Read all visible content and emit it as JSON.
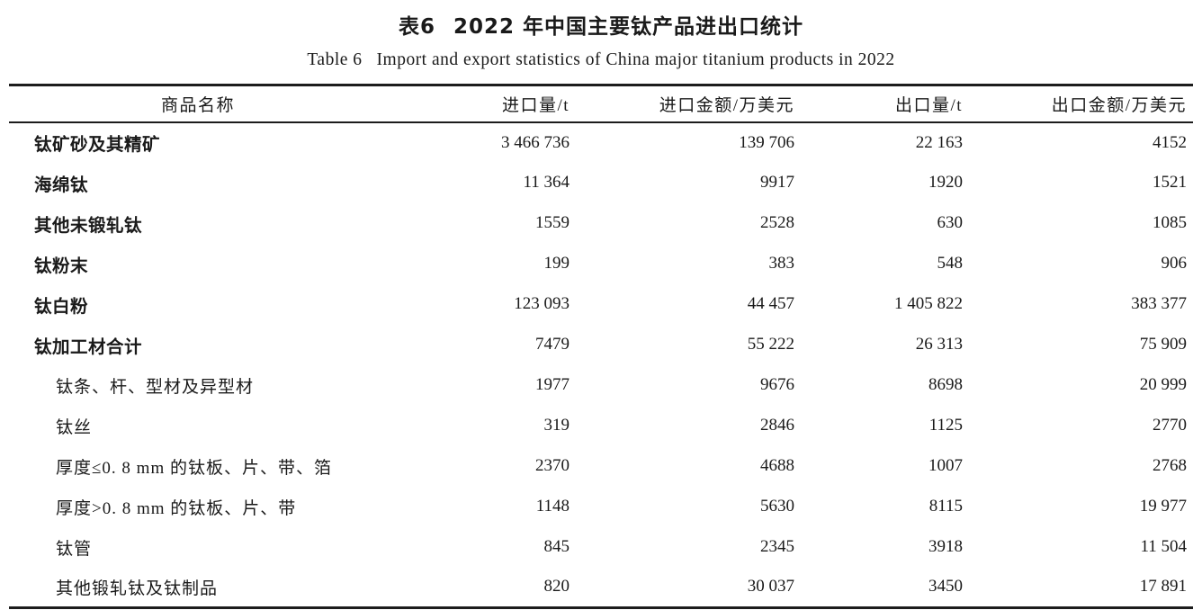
{
  "page": {
    "title_zh": {
      "label": "表6",
      "text": "2022 年中国主要钛产品进出口统计"
    },
    "title_en": {
      "label": "Table 6",
      "text": "Import and export statistics of China major titanium products in 2022"
    }
  },
  "table": {
    "headers": {
      "product": "商品名称",
      "import_qty": "进口量/t",
      "import_value": "进口金额/万美元",
      "export_qty": "出口量/t",
      "export_value": "出口金额/万美元"
    },
    "rows": [
      {
        "name": "钛矿砂及其精矿",
        "indent": false,
        "import_qty": "3 466 736",
        "import_value": "139 706",
        "export_qty": "22 163",
        "export_value": "4152"
      },
      {
        "name": "海绵钛",
        "indent": false,
        "import_qty": "11 364",
        "import_value": "9917",
        "export_qty": "1920",
        "export_value": "1521"
      },
      {
        "name": "其他未锻轧钛",
        "indent": false,
        "import_qty": "1559",
        "import_value": "2528",
        "export_qty": "630",
        "export_value": "1085"
      },
      {
        "name": "钛粉末",
        "indent": false,
        "import_qty": "199",
        "import_value": "383",
        "export_qty": "548",
        "export_value": "906"
      },
      {
        "name": "钛白粉",
        "indent": false,
        "import_qty": "123 093",
        "import_value": "44 457",
        "export_qty": "1 405 822",
        "export_value": "383 377"
      },
      {
        "name": "钛加工材合计",
        "indent": false,
        "import_qty": "7479",
        "import_value": "55 222",
        "export_qty": "26 313",
        "export_value": "75 909"
      },
      {
        "name": "钛条、杆、型材及异型材",
        "indent": true,
        "import_qty": "1977",
        "import_value": "9676",
        "export_qty": "8698",
        "export_value": "20 999"
      },
      {
        "name": "钛丝",
        "indent": true,
        "import_qty": "319",
        "import_value": "2846",
        "export_qty": "1125",
        "export_value": "2770"
      },
      {
        "name": "厚度≤0. 8 mm 的钛板、片、带、箔",
        "indent": true,
        "import_qty": "2370",
        "import_value": "4688",
        "export_qty": "1007",
        "export_value": "2768"
      },
      {
        "name": "厚度>0. 8 mm 的钛板、片、带",
        "indent": true,
        "import_qty": "1148",
        "import_value": "5630",
        "export_qty": "8115",
        "export_value": "19 977"
      },
      {
        "name": "钛管",
        "indent": true,
        "import_qty": "845",
        "import_value": "2345",
        "export_qty": "3918",
        "export_value": "11 504"
      },
      {
        "name": "其他锻轧钛及钛制品",
        "indent": true,
        "import_qty": "820",
        "import_value": "30 037",
        "export_qty": "3450",
        "export_value": "17 891"
      }
    ]
  }
}
